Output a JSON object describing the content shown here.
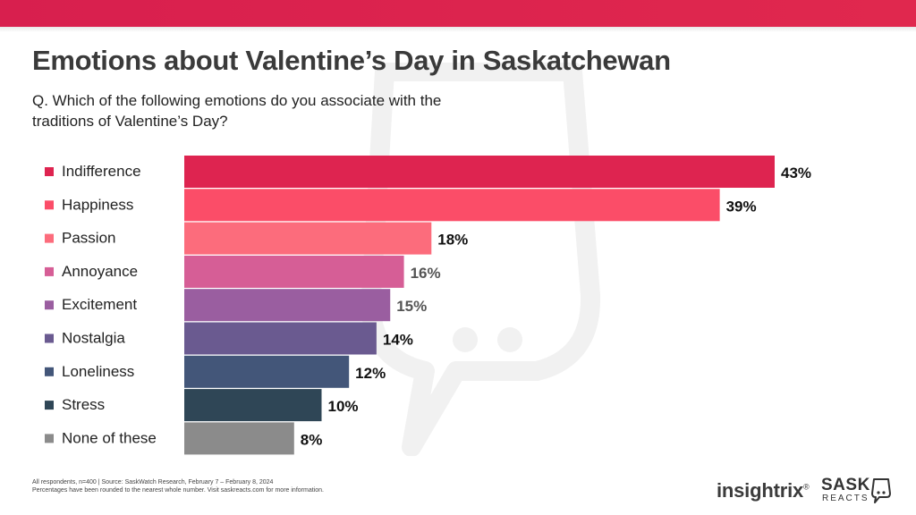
{
  "header": {
    "title": "Emotions about Valentine’s Day in Saskatchewan",
    "question": "Q. Which of the following emotions do you associate with the traditions of Valentine’s Day?"
  },
  "chart_data": {
    "type": "bar",
    "orientation": "horizontal",
    "categories": [
      "Indifference",
      "Happiness",
      "Passion",
      "Annoyance",
      "Excitement",
      "Nostalgia",
      "Loneliness",
      "Stress",
      "None of these"
    ],
    "values": [
      43,
      39,
      18,
      16,
      15,
      14,
      12,
      10,
      8
    ],
    "value_labels": [
      "43%",
      "39%",
      "18%",
      "16%",
      "15%",
      "14%",
      "12%",
      "10%",
      "8%"
    ],
    "colors": [
      "#de2450",
      "#fb4d68",
      "#fc6c7c",
      "#d65e96",
      "#9a5ea0",
      "#6a5a90",
      "#435679",
      "#2f4656",
      "#8b8b8b"
    ],
    "label_colors": [
      "#111111",
      "#111111",
      "#111111",
      "#555555",
      "#555555",
      "#111111",
      "#111111",
      "#111111",
      "#111111"
    ],
    "legend_position": "left"
  },
  "footnote": {
    "line1": "All respondents,  n=400 | Source: SaskWatch Research, February  7 – February 8, 2024",
    "line2": "Percentages have been rounded  to the nearest whole number. Visit saskreacts.com  for more information."
  },
  "logos": {
    "insightrix": "insightrix",
    "insightrix_mark": "®",
    "sask": "SASK",
    "reacts": "REACTS"
  }
}
